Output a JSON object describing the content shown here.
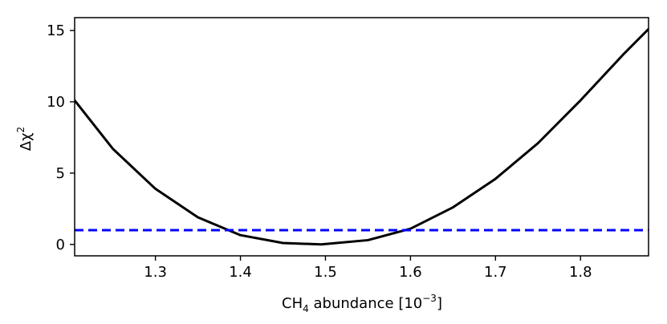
{
  "chart_data": {
    "type": "line",
    "xlabel": {
      "main": "CH",
      "sub": "4",
      "middle": " abundance [10",
      "sup": "−3",
      "end": "]"
    },
    "ylabel": {
      "main": "Δχ",
      "sup": "2"
    },
    "xlim": [
      1.205,
      1.88
    ],
    "ylim": [
      -0.8,
      15.9
    ],
    "x_ticks": [
      1.3,
      1.4,
      1.5,
      1.6,
      1.7,
      1.8
    ],
    "x_tick_labels": [
      "1.3",
      "1.4",
      "1.5",
      "1.6",
      "1.7",
      "1.8"
    ],
    "y_ticks": [
      0,
      5,
      10,
      15
    ],
    "y_tick_labels": [
      "0",
      "5",
      "10",
      "15"
    ],
    "grid": false,
    "series": [
      {
        "kind": "curve",
        "color": "#000000",
        "style": "solid",
        "points": [
          {
            "x": 1.205,
            "y": 10.1
          },
          {
            "x": 1.25,
            "y": 6.7
          },
          {
            "x": 1.3,
            "y": 3.9
          },
          {
            "x": 1.35,
            "y": 1.9
          },
          {
            "x": 1.4,
            "y": 0.65
          },
          {
            "x": 1.45,
            "y": 0.1
          },
          {
            "x": 1.495,
            "y": 0.0
          },
          {
            "x": 1.55,
            "y": 0.3
          },
          {
            "x": 1.6,
            "y": 1.1
          },
          {
            "x": 1.65,
            "y": 2.6
          },
          {
            "x": 1.7,
            "y": 4.6
          },
          {
            "x": 1.75,
            "y": 7.1
          },
          {
            "x": 1.8,
            "y": 10.1
          },
          {
            "x": 1.85,
            "y": 13.3
          },
          {
            "x": 1.88,
            "y": 15.1
          }
        ]
      },
      {
        "kind": "hline",
        "y": 1,
        "color": "#0000ff",
        "style": "dashed"
      }
    ]
  }
}
